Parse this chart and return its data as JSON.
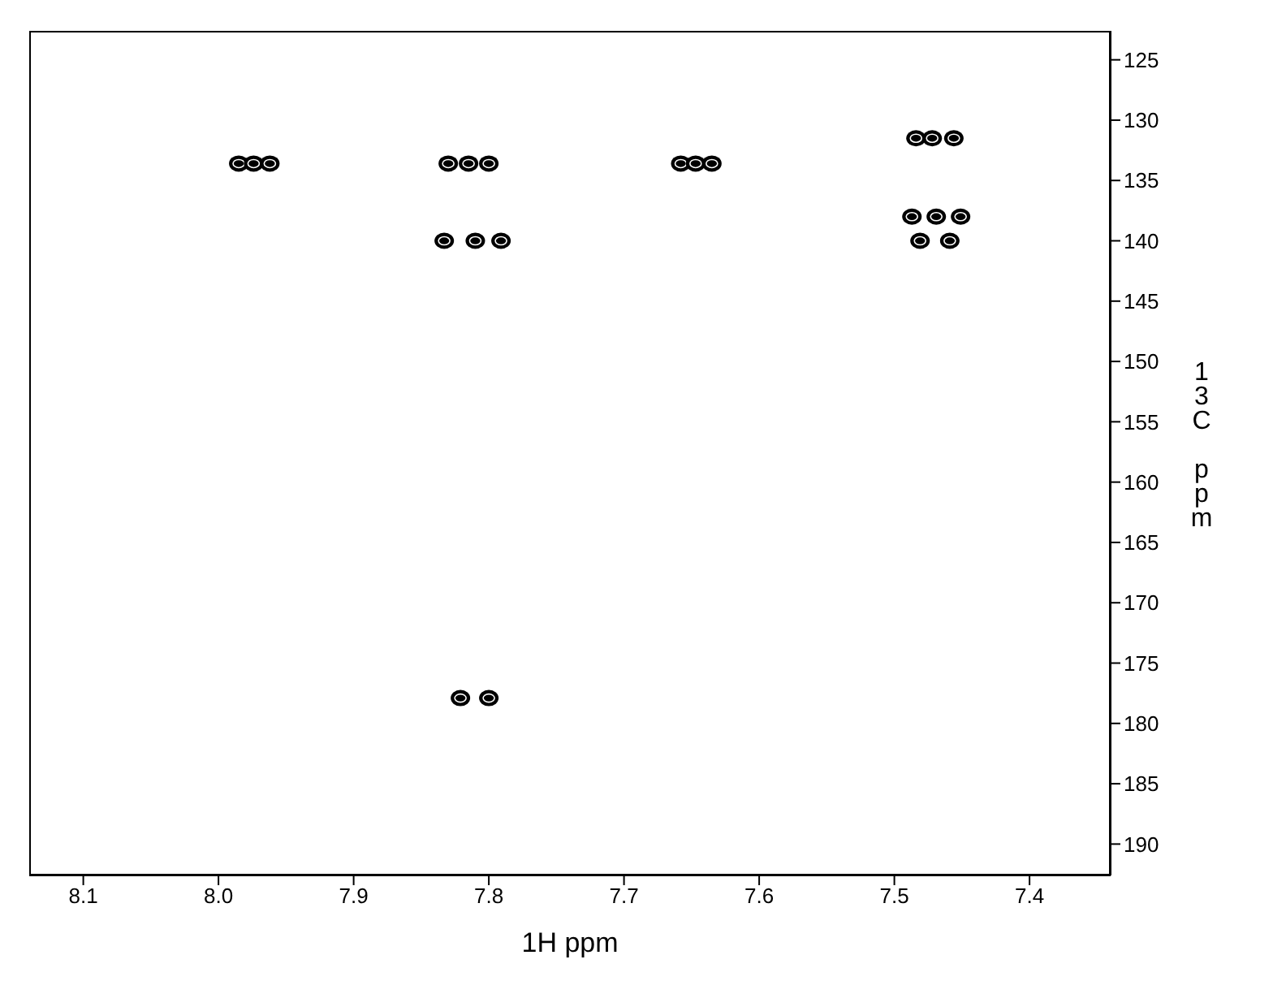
{
  "chart_data": {
    "type": "scatter",
    "xlabel": "1H ppm",
    "ylabel": "13C ppm",
    "xlim": [
      8.14,
      7.34
    ],
    "ylim": [
      192.6,
      122.6
    ],
    "xticks": [
      8.1,
      {
        "value": 8,
        "label": "8.0"
      },
      7.9,
      7.8,
      7.7,
      7.6,
      7.5,
      7.4
    ],
    "yticks": [
      125,
      130,
      135,
      140,
      145,
      150,
      155,
      160,
      165,
      170,
      175,
      180,
      185,
      190
    ],
    "grid": false,
    "legend": false,
    "marker": "circle",
    "series": [
      {
        "color": "#000000",
        "x": [
          7.985,
          7.974,
          7.962,
          7.83,
          7.815,
          7.8,
          7.658,
          7.647,
          7.635,
          7.484,
          7.472,
          7.456,
          7.487,
          7.469,
          7.451,
          7.833,
          7.81,
          7.791,
          7.481,
          7.459,
          7.821,
          7.8
        ],
        "values": [
          133.6,
          133.6,
          133.6,
          133.6,
          133.6,
          133.6,
          133.6,
          133.6,
          133.6,
          131.5,
          131.5,
          131.5,
          138,
          138,
          138,
          140,
          140,
          140,
          140,
          140,
          177.9,
          177.9
        ]
      }
    ]
  }
}
